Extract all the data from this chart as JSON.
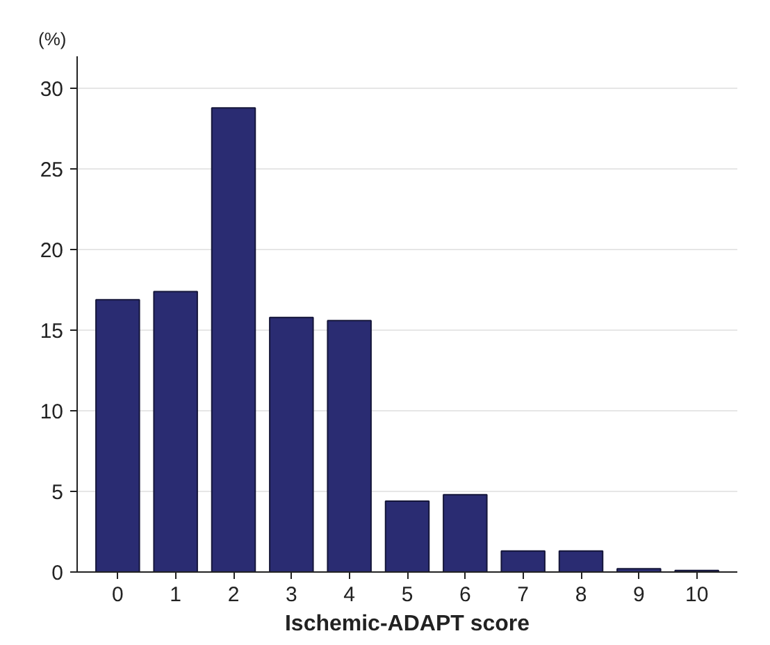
{
  "chart_data": {
    "type": "bar",
    "xlabel": "Ischemic-ADAPT score",
    "ylabel": "(%)",
    "categories": [
      "0",
      "1",
      "2",
      "3",
      "4",
      "5",
      "6",
      "7",
      "8",
      "9",
      "10"
    ],
    "values": [
      16.9,
      17.4,
      28.8,
      15.8,
      15.6,
      4.4,
      4.8,
      1.3,
      1.3,
      0.2,
      0.1
    ],
    "color": "#2a2c72",
    "ylim": [
      0,
      32
    ],
    "yticks": [
      0,
      5,
      10,
      15,
      20,
      25,
      30
    ],
    "grid": "y"
  }
}
